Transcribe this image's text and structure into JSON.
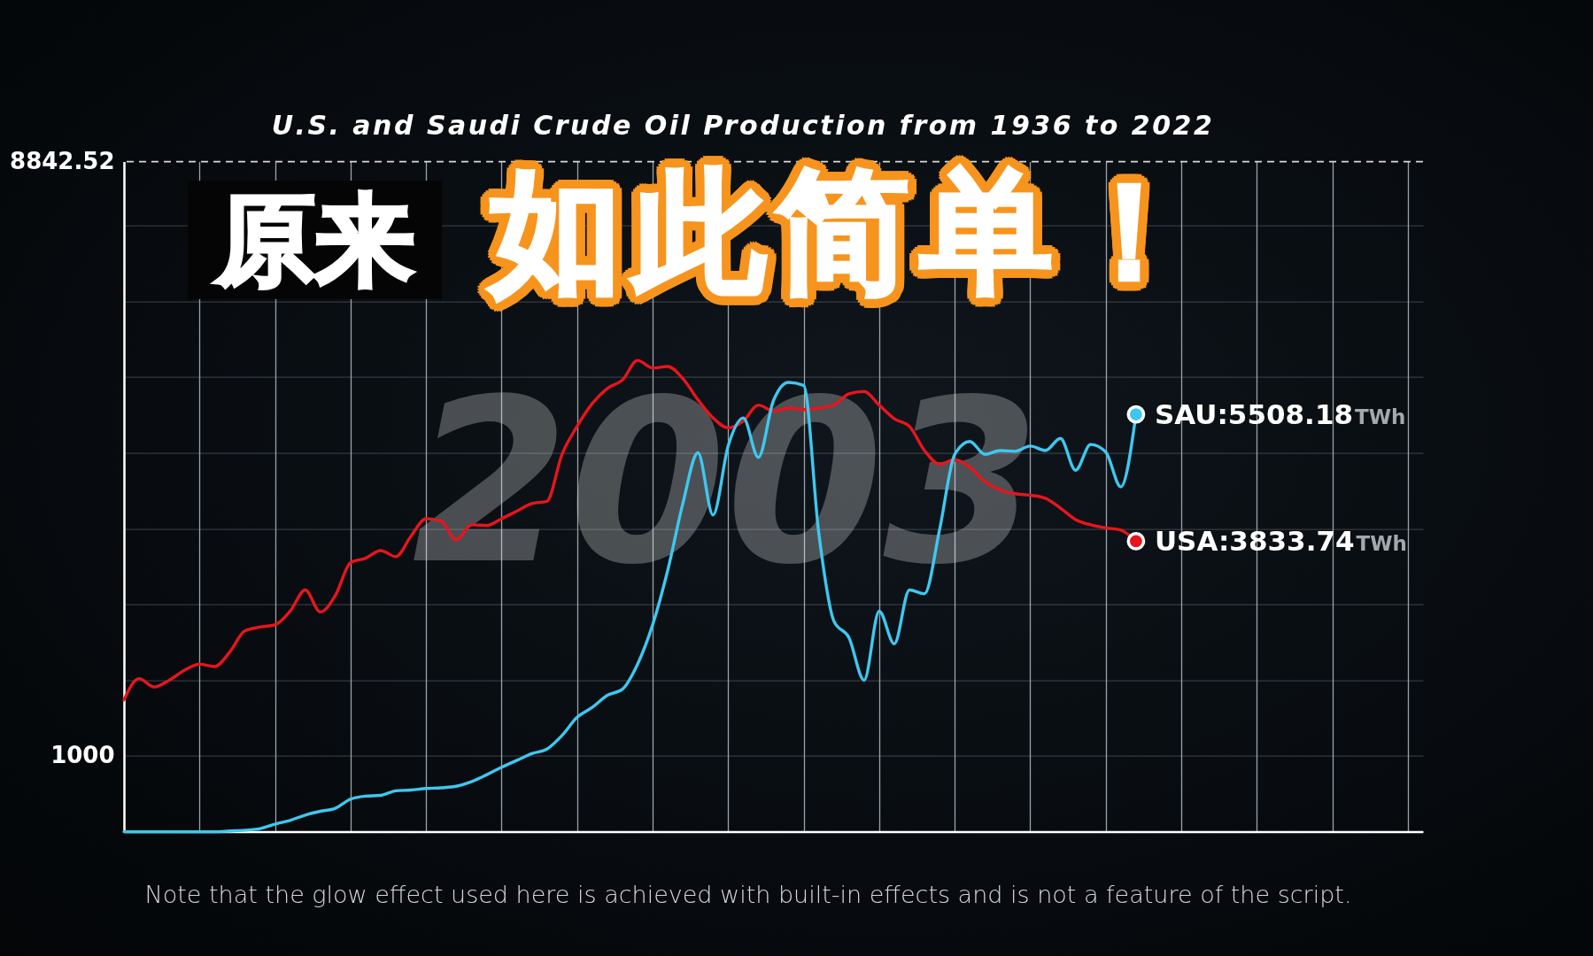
{
  "chart_data": {
    "type": "line",
    "title": "U.S. and Saudi Crude Oil Production from 1936 to 2022",
    "categories": [
      null,
      null,
      null,
      null,
      null,
      null,
      null,
      null,
      null,
      null,
      null,
      null,
      null,
      null,
      null,
      null,
      null,
      null,
      null,
      null,
      null,
      null,
      null,
      null,
      null,
      null,
      null,
      null,
      null,
      null,
      null,
      null,
      null,
      null,
      null,
      null,
      null,
      null,
      null,
      null,
      null,
      null,
      null,
      null,
      null,
      null,
      null,
      null,
      null,
      null,
      null,
      null,
      null,
      null,
      null,
      null,
      null,
      null,
      null,
      null,
      null,
      null,
      null,
      null,
      null,
      null,
      null,
      null,
      null,
      null,
      null,
      null,
      null,
      null,
      null,
      null,
      null,
      null,
      null,
      null,
      null,
      null,
      null,
      null,
      null,
      null,
      null
    ],
    "series": [
      {
        "name": "USA:",
        "color": "#e8151d",
        "values": [
          1740,
          2020,
          1910,
          2000,
          2130,
          2210,
          2180,
          2370,
          2650,
          2700,
          2730,
          2910,
          3190,
          2900,
          3120,
          3550,
          3610,
          3710,
          3630,
          3900,
          4130,
          4100,
          3850,
          4050,
          4040,
          4130,
          4230,
          4330,
          4360,
          4980,
          5350,
          5650,
          5850,
          5960,
          6220,
          6120,
          6140,
          5980,
          5700,
          5460,
          5330,
          5420,
          5630,
          5550,
          5590,
          5570,
          5590,
          5630,
          5780,
          5810,
          5630,
          5450,
          5350,
          5030,
          4850,
          4910,
          4810,
          4620,
          4510,
          4460,
          4440,
          4400,
          4270,
          4120,
          4050,
          4010,
          3980,
          3833.74,
          null,
          null,
          null,
          null,
          null,
          null,
          null,
          null,
          null,
          null,
          null,
          null,
          null,
          null,
          null,
          null,
          null,
          null,
          null
        ],
        "value_labels": [
          null,
          null,
          null,
          null,
          null,
          null,
          null,
          null,
          null,
          null,
          null,
          null,
          null,
          null,
          null,
          null,
          null,
          null,
          null,
          null,
          null,
          null,
          null,
          null,
          null,
          null,
          null,
          null,
          null,
          null,
          null,
          null,
          null,
          null,
          null,
          null,
          null,
          null,
          null,
          null,
          null,
          null,
          null,
          null,
          null,
          null,
          null,
          null,
          null,
          null,
          null,
          null,
          null,
          null,
          null,
          null,
          null,
          null,
          null,
          null,
          null,
          null,
          null,
          null,
          null,
          null,
          null,
          "3833.74TWh",
          null,
          null,
          null,
          null,
          null,
          null,
          null,
          null,
          null,
          null,
          null,
          null,
          null,
          null,
          null,
          null,
          null,
          null,
          null
        ]
      },
      {
        "name": "SAU:",
        "color": "#3ec8f0",
        "values": [
          0,
          0,
          0,
          0,
          0,
          0,
          0,
          10,
          20,
          40,
          100,
          150,
          220,
          270,
          310,
          430,
          470,
          480,
          540,
          550,
          570,
          580,
          600,
          660,
          750,
          850,
          940,
          1030,
          1090,
          1270,
          1510,
          1640,
          1800,
          1880,
          2210,
          2730,
          3450,
          4330,
          5000,
          4180,
          5090,
          5460,
          4940,
          5690,
          5930,
          5890,
          3940,
          2780,
          2560,
          2000,
          2910,
          2480,
          3190,
          3140,
          3990,
          4980,
          5150,
          4980,
          5030,
          5020,
          5090,
          5030,
          5190,
          4770,
          5110,
          5010,
          4550,
          5508.18,
          null,
          null,
          null,
          null,
          null,
          null,
          null,
          null,
          null,
          null,
          null,
          null,
          null,
          null,
          null,
          null,
          null,
          null,
          null
        ],
        "value_labels": [
          null,
          null,
          null,
          null,
          null,
          null,
          null,
          null,
          null,
          null,
          null,
          null,
          null,
          null,
          null,
          null,
          null,
          null,
          null,
          null,
          null,
          null,
          null,
          null,
          null,
          null,
          null,
          null,
          null,
          null,
          null,
          null,
          null,
          null,
          null,
          null,
          null,
          null,
          null,
          null,
          null,
          null,
          null,
          null,
          null,
          null,
          null,
          null,
          null,
          null,
          null,
          null,
          null,
          null,
          null,
          null,
          null,
          null,
          null,
          null,
          null,
          null,
          null,
          null,
          null,
          null,
          null,
          "5508.18TWh",
          null,
          null,
          null,
          null,
          null,
          null,
          null,
          null,
          null,
          null,
          null,
          null,
          null,
          null,
          null,
          null,
          null,
          null,
          null
        ]
      }
    ],
    "ylim": [
      0,
      8842.52
    ],
    "yticks": [
      1000,
      {
        "value": 2000,
        "label": null
      },
      {
        "value": 3000,
        "label": null
      },
      {
        "value": 4000,
        "label": null
      },
      {
        "value": 5000,
        "label": null
      },
      {
        "value": 6000,
        "label": null
      },
      {
        "value": 7000,
        "label": null
      },
      {
        "value": 8000,
        "label": null
      },
      8842.52
    ],
    "ref_lines": [
      {
        "axis": "y",
        "value": 8842.52,
        "line_style": "dashed",
        "color": "#d8d8d8"
      }
    ],
    "grid": true,
    "annotations": [
      "2003",
      "原来",
      "如此简单！",
      "Note that the glow effect used here is achieved with built-in effects and is not a feature of the script."
    ]
  }
}
